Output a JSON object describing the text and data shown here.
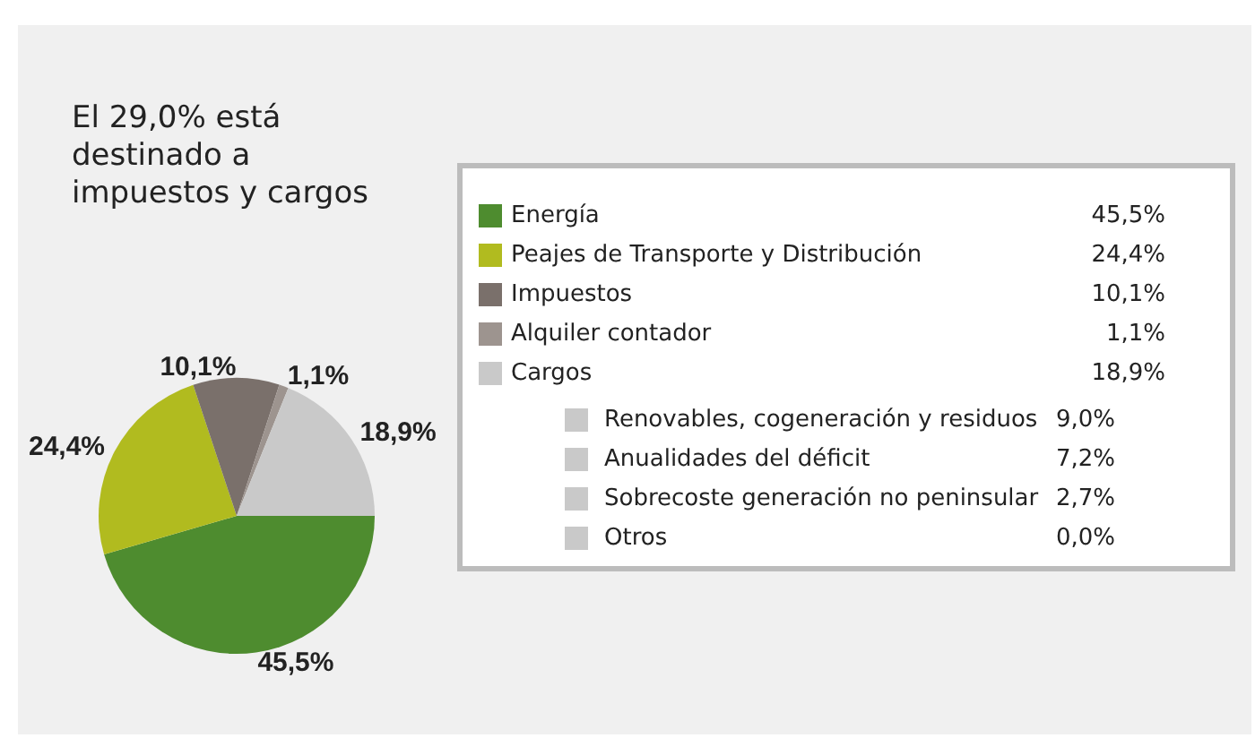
{
  "chart_data": {
    "type": "pie",
    "title": "El 29,0% está destinado a impuestos y cargos",
    "categories": [
      "Energía",
      "Peajes de Transporte y Distribución",
      "Impuestos",
      "Alquiler contador",
      "Cargos"
    ],
    "values": [
      45.5,
      24.4,
      10.1,
      1.1,
      18.9
    ],
    "value_labels": [
      "45,5%",
      "24,4%",
      "10,1%",
      "1,1%",
      "18,9%"
    ],
    "colors": [
      "#4e8c2f",
      "#b1bb1f",
      "#7a706b",
      "#9d948f",
      "#c9c9c9"
    ],
    "legend": "right",
    "annotations": [
      "Renovables, cogeneración y residuos",
      "9,0%",
      "Anualidades del déficit",
      "7,2%",
      "Sobrecoste generación no peninsular",
      "2,7%",
      "Otros",
      "0,0%"
    ]
  }
}
